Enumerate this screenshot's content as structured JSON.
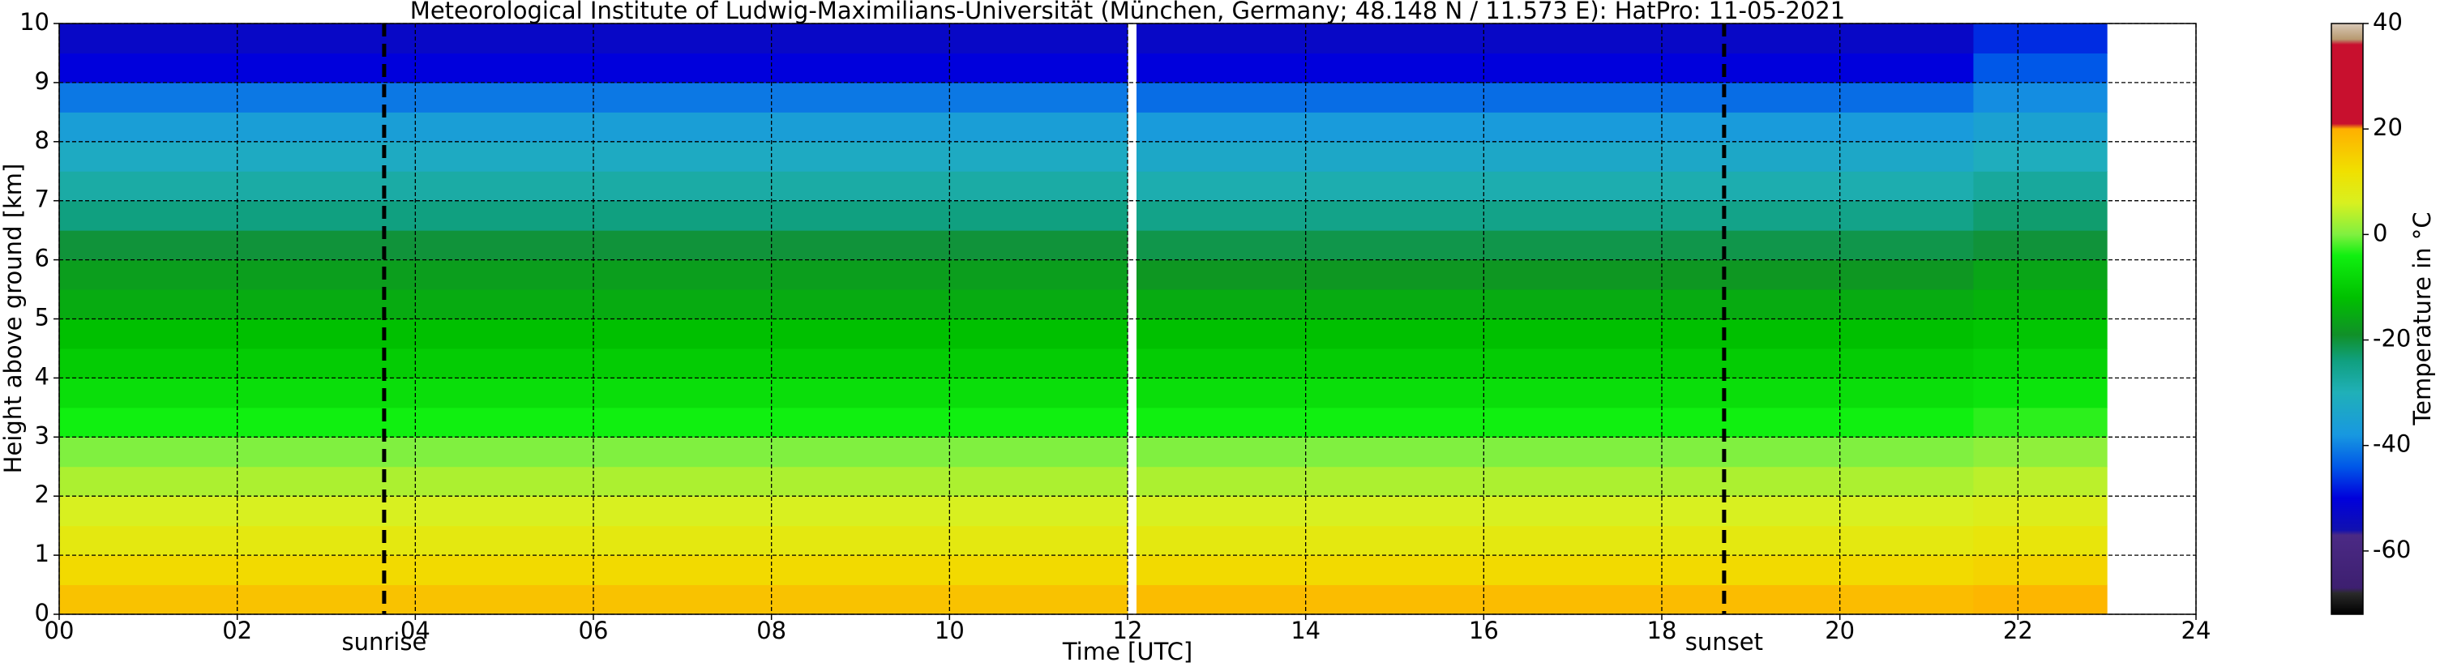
{
  "chart_data": {
    "type": "heatmap",
    "title": "Meteorological Institute of Ludwig-Maximilians-Universität (München, Germany; 48.148 N / 11.573 E):    HatPro: 11-05-2021",
    "xlabel": "Time [UTC]",
    "ylabel": "Height above ground [km]",
    "colorbar_label": "Temperature in °C",
    "xlim": [
      0,
      24
    ],
    "ylim": [
      0,
      10
    ],
    "xticks": [
      {
        "value": 0,
        "label": "00"
      },
      {
        "value": 2,
        "label": "02"
      },
      {
        "value": 4,
        "label": "04"
      },
      {
        "value": 6,
        "label": "06"
      },
      {
        "value": 8,
        "label": "08"
      },
      10,
      12,
      14,
      16,
      18,
      20,
      22,
      24
    ],
    "yticks": [
      0,
      1,
      2,
      3,
      4,
      5,
      6,
      7,
      8,
      9,
      10
    ],
    "grid": true,
    "y_bins": [
      0,
      0.5,
      1,
      1.5,
      2,
      2.5,
      3,
      3.5,
      4,
      4.5,
      5,
      5.5,
      6,
      6.5,
      7,
      7.5,
      8,
      8.5,
      9,
      9.5,
      10
    ],
    "columns": [
      {
        "start": 0,
        "end": 12,
        "values": [
          17,
          13,
          9,
          6,
          3,
          0,
          -4,
          -7,
          -10,
          -12,
          -15,
          -17,
          -20,
          -24,
          -28,
          -32,
          -36,
          -41,
          -50,
          -53
        ]
      },
      {
        "start": 12.1,
        "end": 21.5,
        "values": [
          18,
          13,
          9,
          6,
          3,
          0,
          -4,
          -7,
          -10,
          -12,
          -15,
          -18,
          -21,
          -25,
          -29,
          -33,
          -37,
          -42,
          -50,
          -53
        ]
      },
      {
        "start": 21.5,
        "end": 23,
        "values": [
          19,
          14,
          10,
          7,
          4,
          1,
          -3,
          -6,
          -9,
          -11,
          -14,
          -16,
          -20,
          -23,
          -27,
          -31,
          -35,
          -39,
          -44,
          -47
        ]
      }
    ],
    "clim": [
      -72,
      40
    ],
    "cticks": [
      -60,
      -40,
      -20,
      0,
      20,
      40
    ],
    "colormap": [
      {
        "value": -72,
        "color": "#000000"
      },
      {
        "value": -68,
        "color": "#2a2a2a"
      },
      {
        "value": -67,
        "color": "#3d1f70"
      },
      {
        "value": -57,
        "color": "#4b2a85"
      },
      {
        "value": -56,
        "color": "#1010b0"
      },
      {
        "value": -50,
        "color": "#0000dc"
      },
      {
        "value": -44,
        "color": "#0058e8"
      },
      {
        "value": -38,
        "color": "#1898e0"
      },
      {
        "value": -30,
        "color": "#20b0b8"
      },
      {
        "value": -24,
        "color": "#10a080"
      },
      {
        "value": -19,
        "color": "#109028"
      },
      {
        "value": -12,
        "color": "#00c000"
      },
      {
        "value": -4,
        "color": "#10f010"
      },
      {
        "value": 0,
        "color": "#80f040"
      },
      {
        "value": 6,
        "color": "#d8f020"
      },
      {
        "value": 12,
        "color": "#f0e000"
      },
      {
        "value": 20,
        "color": "#ffb000"
      },
      {
        "value": 21,
        "color": "#c8102e"
      },
      {
        "value": 36,
        "color": "#c8102e"
      },
      {
        "value": 37,
        "color": "#b89a70"
      },
      {
        "value": 40,
        "color": "#d8c8b8"
      }
    ],
    "annotations": [
      {
        "x": 3.65,
        "label": "sunrise"
      },
      {
        "x": 18.7,
        "label": "sunset"
      }
    ]
  }
}
